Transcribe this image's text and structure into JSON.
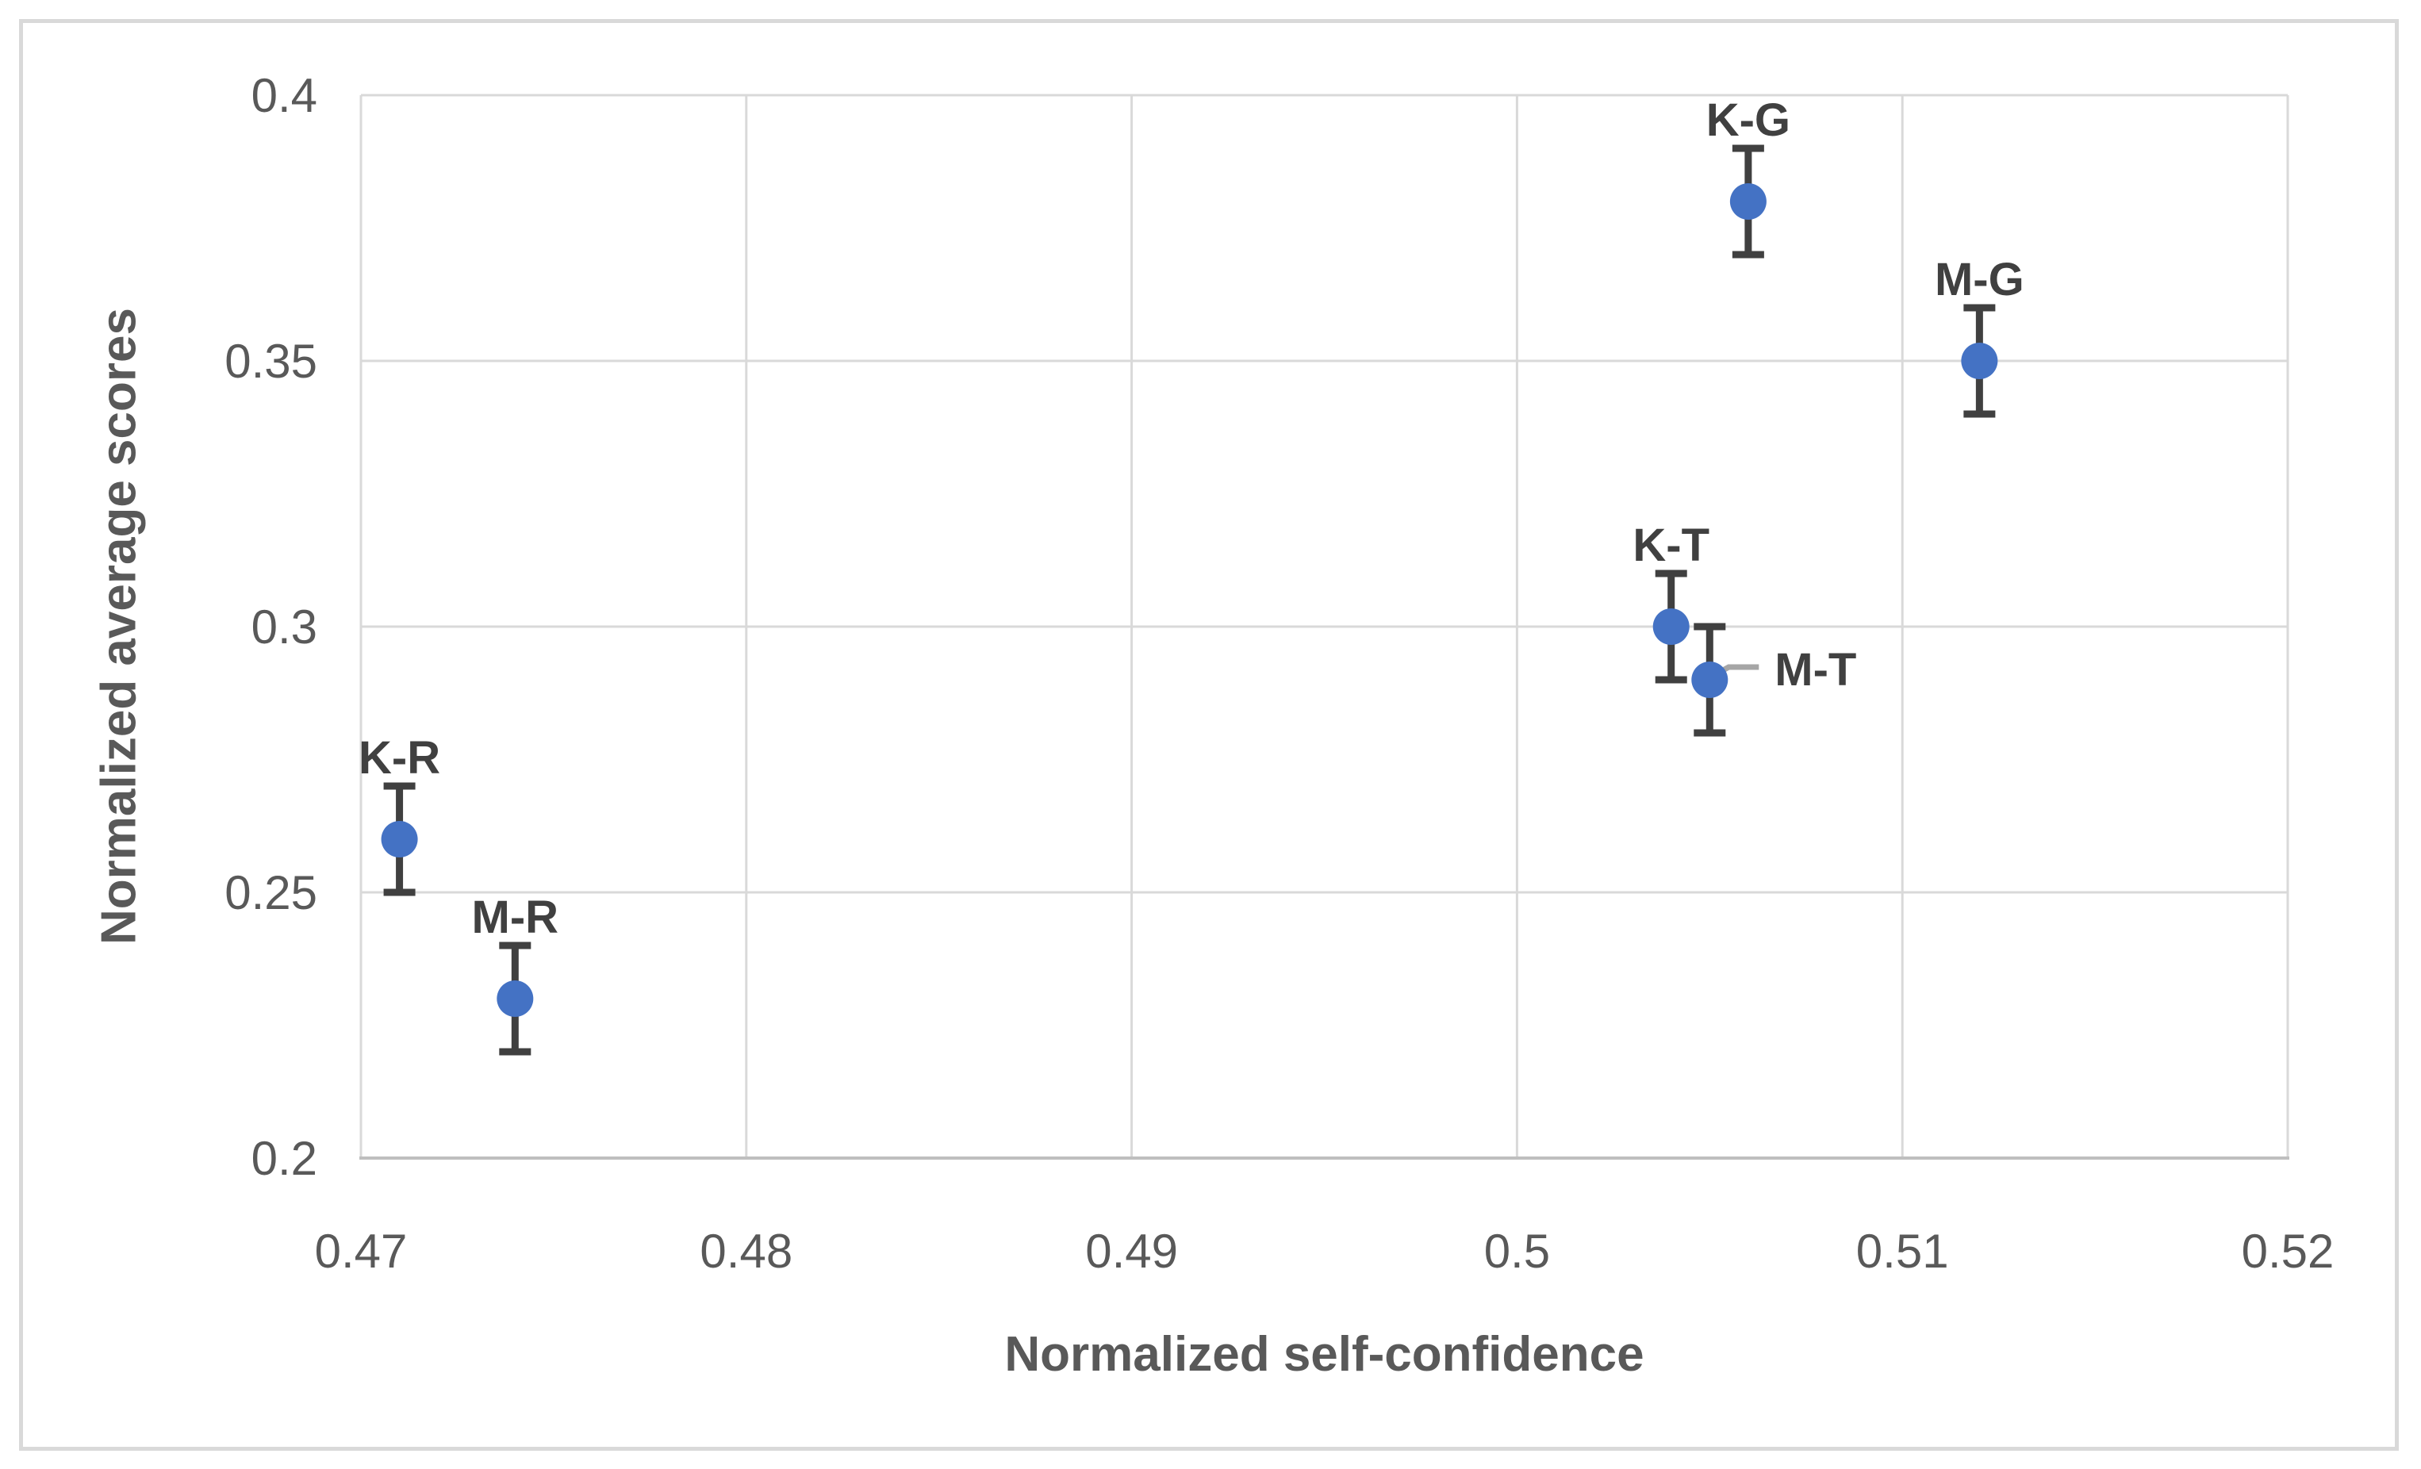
{
  "chart_data": {
    "type": "scatter",
    "title": "",
    "xlabel": "Normalized self-confidence",
    "ylabel": "Normalized average scores",
    "xlim": [
      0.47,
      0.52
    ],
    "ylim": [
      0.2,
      0.4
    ],
    "grid": true,
    "legend_position": "none",
    "xticks": [
      {
        "v": 0.47,
        "label": "0.47"
      },
      {
        "v": 0.48,
        "label": "0.48"
      },
      {
        "v": 0.49,
        "label": "0.49"
      },
      {
        "v": 0.5,
        "label": "0.5"
      },
      {
        "v": 0.51,
        "label": "0.51"
      },
      {
        "v": 0.52,
        "label": "0.52"
      }
    ],
    "yticks": [
      {
        "v": 0.2,
        "label": "0.2"
      },
      {
        "v": 0.25,
        "label": "0.25"
      },
      {
        "v": 0.3,
        "label": "0.3"
      },
      {
        "v": 0.35,
        "label": "0.35"
      },
      {
        "v": 0.4,
        "label": "0.4"
      }
    ],
    "series": [
      {
        "name": "points",
        "points": [
          {
            "label": "K-R",
            "x": 0.471,
            "y": 0.26,
            "yerr": 0.01,
            "label_side": "above"
          },
          {
            "label": "M-R",
            "x": 0.474,
            "y": 0.23,
            "yerr": 0.01,
            "label_side": "above"
          },
          {
            "label": "K-T",
            "x": 0.504,
            "y": 0.3,
            "yerr": 0.01,
            "label_side": "above"
          },
          {
            "label": "M-T",
            "x": 0.505,
            "y": 0.29,
            "yerr": 0.01,
            "label_side": "right-leader"
          },
          {
            "label": "K-G",
            "x": 0.506,
            "y": 0.38,
            "yerr": 0.01,
            "label_side": "above"
          },
          {
            "label": "M-G",
            "x": 0.512,
            "y": 0.35,
            "yerr": 0.01,
            "label_side": "above"
          }
        ]
      }
    ],
    "colors": {
      "marker": "#4472C4",
      "error_bar": "#404040",
      "gridline": "#D9D9D9",
      "axis_line": "#BFBFBF",
      "tick_text": "#595959",
      "axis_title_text": "#595959",
      "point_label_text": "#404040",
      "leader_line": "#A6A6A6",
      "chart_border": "#D9D9D9"
    }
  }
}
